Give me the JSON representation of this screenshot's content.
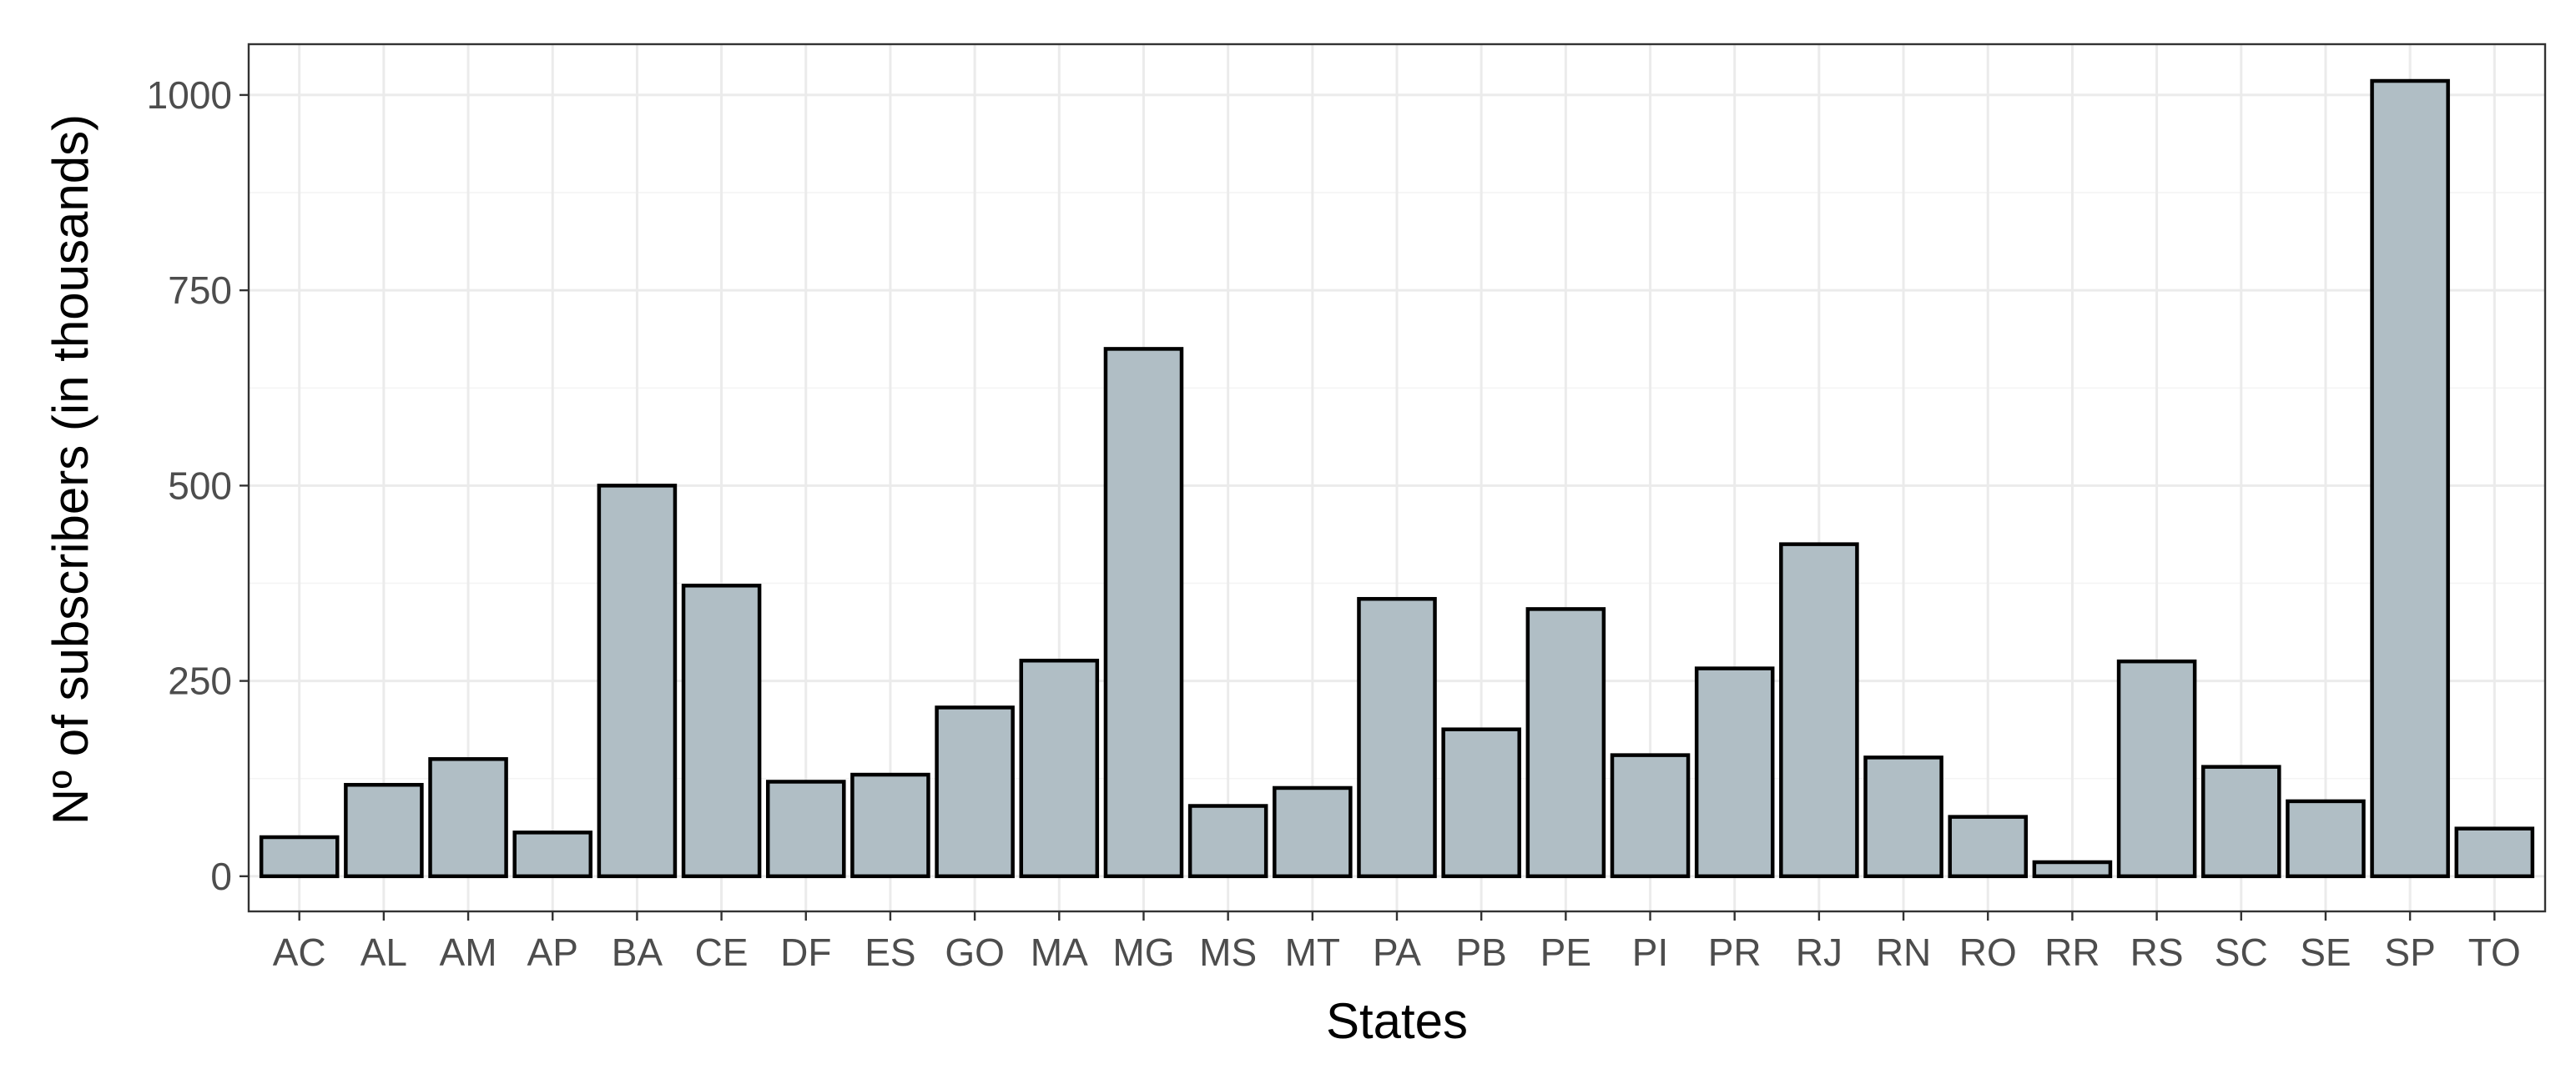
{
  "chart_data": {
    "type": "bar",
    "title": "",
    "xlabel": "States",
    "ylabel": "Nº of subscribers (in thousands)",
    "categories": [
      "AC",
      "AL",
      "AM",
      "AP",
      "BA",
      "CE",
      "DF",
      "ES",
      "GO",
      "MA",
      "MG",
      "MS",
      "MT",
      "PA",
      "PB",
      "PE",
      "PI",
      "PR",
      "RJ",
      "RN",
      "RO",
      "RR",
      "RS",
      "SC",
      "SE",
      "SP",
      "TO"
    ],
    "values": [
      50,
      117,
      150,
      56,
      500,
      372,
      121,
      130,
      216,
      276,
      675,
      90,
      113,
      355,
      188,
      342,
      155,
      266,
      425,
      152,
      76,
      18,
      275,
      140,
      96,
      1018,
      61
    ],
    "yticks": [
      0,
      250,
      500,
      750,
      1000
    ],
    "ylim": [
      -45,
      1065
    ],
    "grid": true,
    "colors": {
      "bar_fill": "#b0bec5",
      "bar_stroke": "#000000",
      "grid": "#ebebeb",
      "panel_border": "#333333"
    }
  }
}
